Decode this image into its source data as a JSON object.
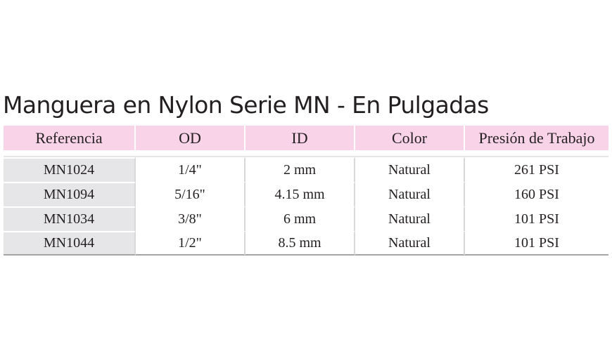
{
  "title": "Manguera en Nylon Serie MN - En Pulgadas",
  "table": {
    "headers": [
      "Referencia",
      "OD",
      "ID",
      "Color",
      "Presión de Trabajo"
    ],
    "rows": [
      [
        "MN1024",
        "1/4\"",
        "2 mm",
        "Natural",
        "261 PSI"
      ],
      [
        "MN1094",
        "5/16\"",
        "4.15 mm",
        "Natural",
        "160 PSI"
      ],
      [
        "MN1034",
        "3/8\"",
        "6 mm",
        "Natural",
        "101 PSI"
      ],
      [
        "MN1044",
        "1/2\"",
        "8.5 mm",
        "Natural",
        "101 PSI"
      ]
    ]
  },
  "colors": {
    "header_bg": "#f9d4e8",
    "reference_col_bg": "#e6e6e9",
    "text": "#231f20"
  }
}
